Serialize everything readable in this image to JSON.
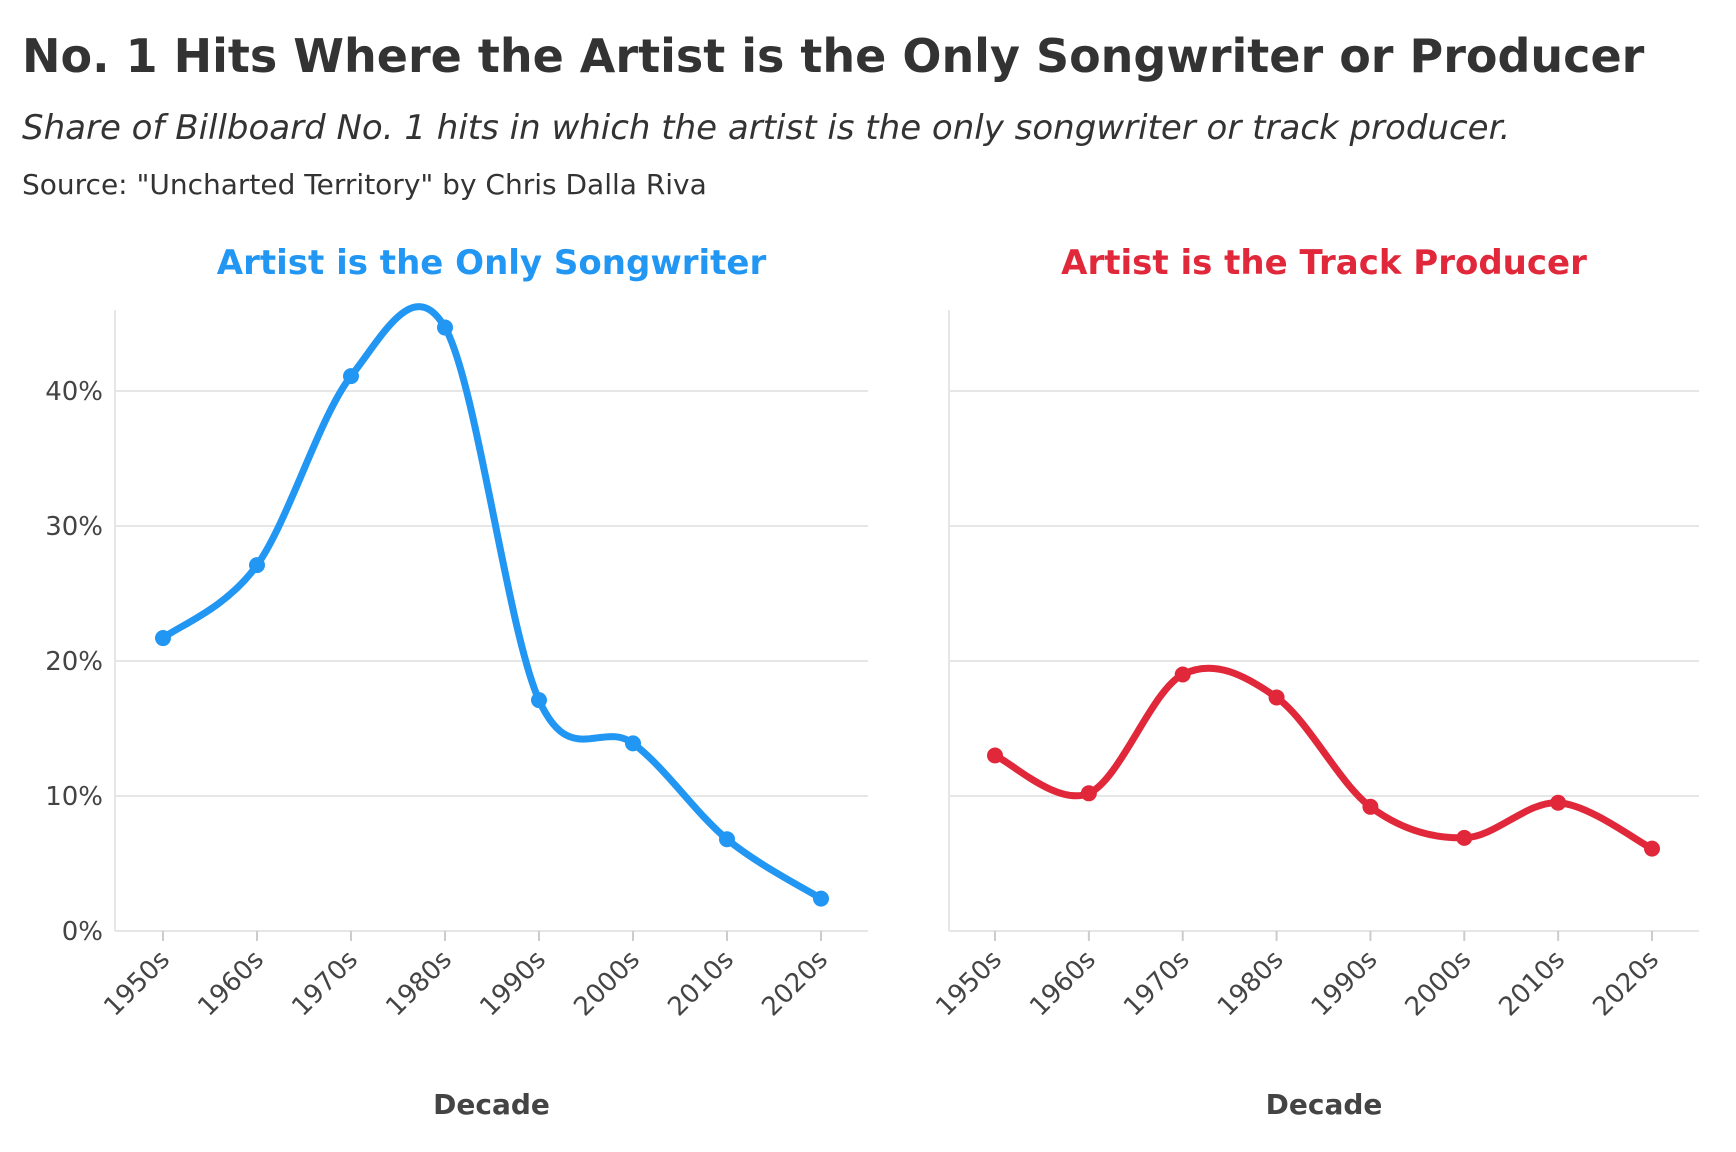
{
  "title": "No. 1 Hits Where the Artist is the Only Songwriter or Producer",
  "subtitle": "Share of Billboard No. 1 hits in which the artist is the only songwriter or track producer.",
  "source": "Source: \"Uncharted Territory\" by Chris Dalla Riva",
  "chart_data": [
    {
      "type": "line",
      "title": "Artist is the Only Songwriter",
      "color": "#2196f3",
      "x_label": "Decade",
      "categories": [
        "1950s",
        "1960s",
        "1970s",
        "1980s",
        "1990s",
        "2000s",
        "2010s",
        "2020s"
      ],
      "values": [
        21.7,
        27.1,
        41.1,
        44.7,
        17.1,
        13.9,
        6.8,
        2.4
      ],
      "ylim": [
        0,
        46
      ],
      "yticks": [
        {
          "value": 0,
          "label": "0%"
        },
        {
          "value": 10,
          "label": "10%"
        },
        {
          "value": 20,
          "label": "20%"
        },
        {
          "value": 30,
          "label": "30%"
        },
        {
          "value": 40,
          "label": "40%"
        }
      ],
      "grid": true
    },
    {
      "type": "line",
      "title": "Artist is the Track Producer",
      "color": "#e0283a",
      "x_label": "Decade",
      "categories": [
        "1950s",
        "1960s",
        "1970s",
        "1980s",
        "1990s",
        "2000s",
        "2010s",
        "2020s"
      ],
      "values": [
        13.0,
        10.2,
        19.0,
        17.3,
        9.2,
        6.9,
        9.5,
        6.1
      ],
      "ylim": [
        0,
        46
      ],
      "yticks": [
        0,
        10,
        20,
        30,
        40
      ],
      "ytick_labels": false,
      "grid": true
    }
  ]
}
